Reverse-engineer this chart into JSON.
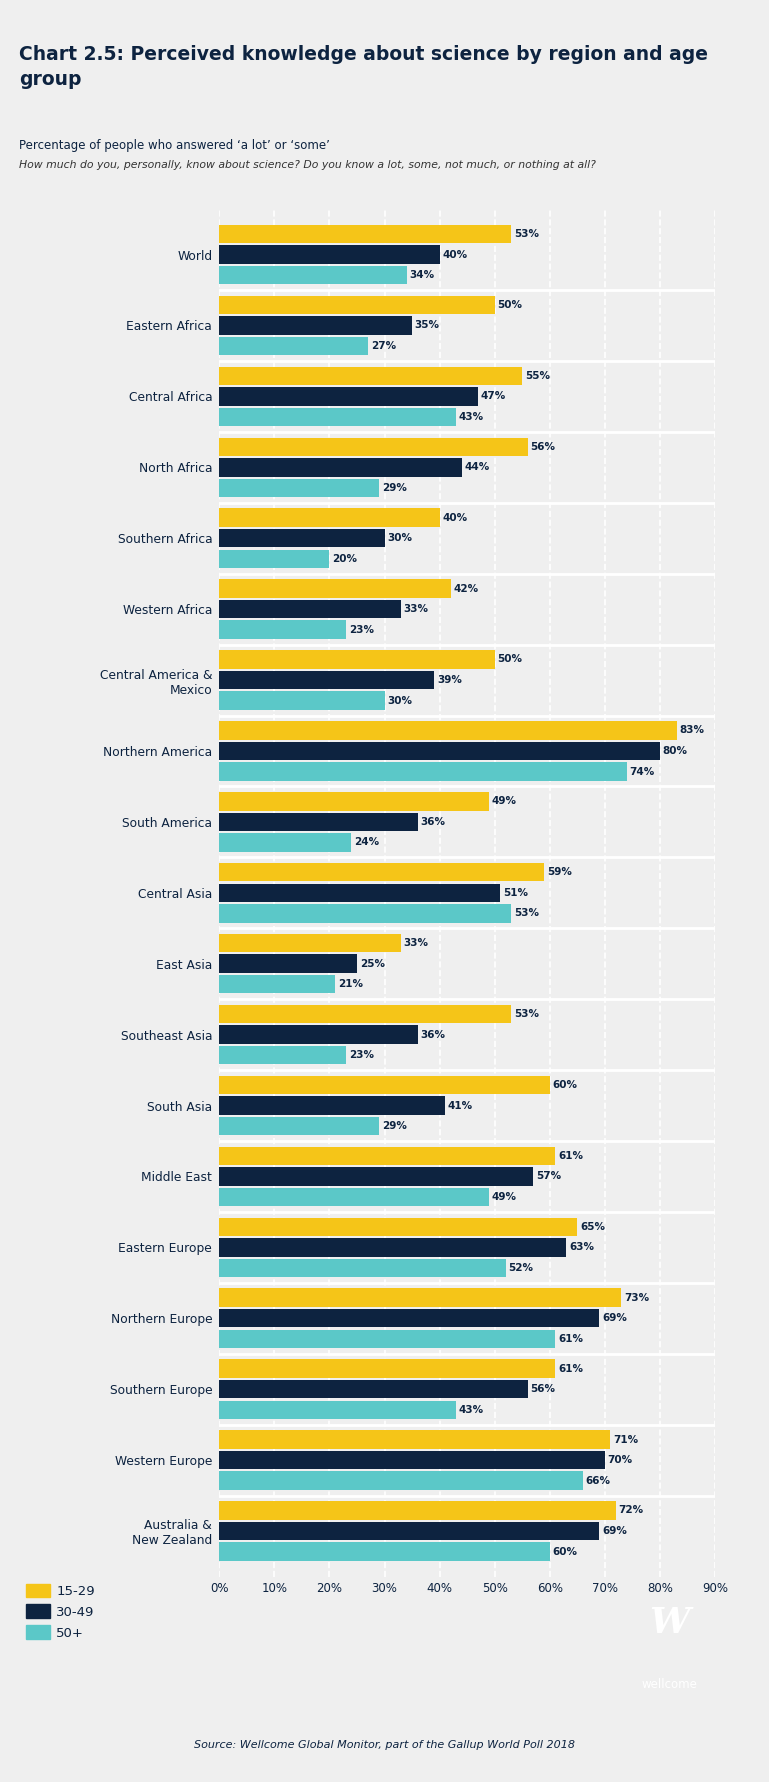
{
  "title": "Chart 2.5: Perceived knowledge about science by region and age\ngroup",
  "subtitle": "Percentage of people who answered ‘a lot’ or ‘some’",
  "question": "How much do you, personally, know about science? Do you know a lot, some, not much, or nothing at all?",
  "source": "Source: Wellcome Global Monitor, part of the Gallup World Poll 2018",
  "regions": [
    "World",
    "Eastern Africa",
    "Central Africa",
    "North Africa",
    "Southern Africa",
    "Western Africa",
    "Central America &\nMexico",
    "Northern America",
    "South America",
    "Central Asia",
    "East Asia",
    "Southeast Asia",
    "South Asia",
    "Middle East",
    "Eastern Europe",
    "Northern Europe",
    "Southern Europe",
    "Western Europe",
    "Australia &\nNew Zealand"
  ],
  "values_15_29": [
    53,
    50,
    55,
    56,
    40,
    42,
    50,
    83,
    49,
    59,
    33,
    53,
    60,
    61,
    65,
    73,
    61,
    71,
    72
  ],
  "values_30_49": [
    40,
    35,
    47,
    44,
    30,
    33,
    39,
    80,
    36,
    51,
    25,
    36,
    41,
    57,
    63,
    69,
    56,
    70,
    69
  ],
  "values_50plus": [
    34,
    27,
    43,
    29,
    20,
    23,
    30,
    74,
    24,
    53,
    21,
    23,
    29,
    49,
    52,
    61,
    43,
    66,
    60
  ],
  "color_15_29": "#F5C518",
  "color_30_49": "#0D2340",
  "color_50plus": "#5BC8C8",
  "bg_color": "#EFEFEF",
  "bar_height": 0.26,
  "xticks": [
    0,
    10,
    20,
    30,
    40,
    50,
    60,
    70,
    80,
    90
  ]
}
